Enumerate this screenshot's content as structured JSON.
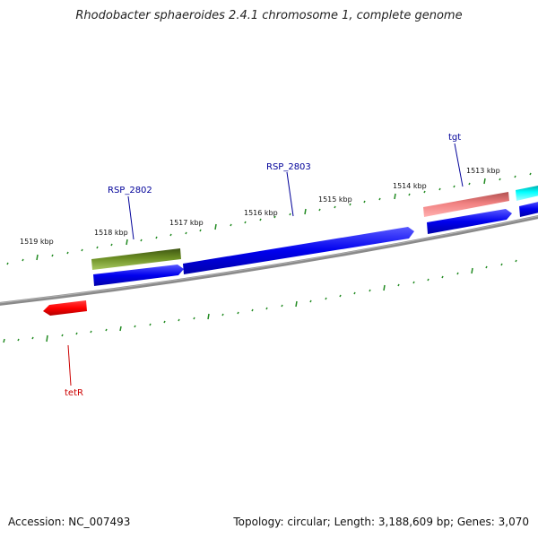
{
  "header": {
    "title": "Rhodobacter sphaeroides 2.4.1 chromosome 1, complete genome"
  },
  "footer": {
    "accession": "Accession: NC_007493",
    "info": "Topology: circular; Length: 3,188,609 bp; Genes: 3,070"
  },
  "ruler": {
    "labels": [
      "1513 kbp",
      "1514 kbp",
      "1515 kbp",
      "1516 kbp",
      "1517 kbp",
      "1518 kbp",
      "1519 kbp"
    ]
  },
  "genes": [
    {
      "name": "tgt",
      "strand": "forward",
      "color": "#f08080"
    },
    {
      "name": "RSP_2803",
      "strand": "forward",
      "color": "#0000ee"
    },
    {
      "name": "RSP_2802",
      "strand": "forward",
      "color": "#6b8e23"
    },
    {
      "name": "tetR",
      "strand": "reverse",
      "color": "#ff0000"
    }
  ],
  "colors": {
    "backbone": "#7f7f7f",
    "tick": "#228b22",
    "cds": "#0000ee",
    "rna": "#00ffff",
    "gene_label_blue": "#000099",
    "gene_label_red": "#cc0000"
  }
}
